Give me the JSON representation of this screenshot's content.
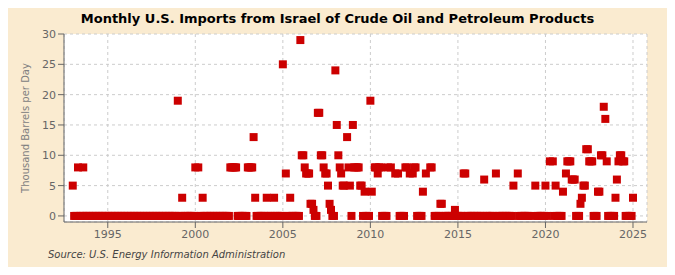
{
  "chart_data": {
    "type": "scatter",
    "title": "Monthly U.S. Imports from Israel of Crude Oil and Petroleum Products",
    "ylabel": "Thousand Barrels per Day",
    "annotation": "Source: U.S. Energy Information Administration",
    "color": "#cc0000",
    "marker": "square",
    "grid": true,
    "xlim": [
      1992.5,
      2025.8
    ],
    "xticks": [
      1995,
      2000,
      2005,
      2010,
      2015,
      2020,
      2025
    ],
    "ylim": [
      -1,
      30
    ],
    "yticks": [
      0,
      5,
      10,
      15,
      20,
      25,
      30
    ],
    "x": [
      1993.0,
      1993.3,
      1993.6,
      1993.08,
      1993.17,
      1993.25,
      1993.42,
      1993.5,
      1993.58,
      1993.67,
      1993.75,
      1993.83,
      1993.92,
      1994.0,
      1994.08,
      1994.17,
      1994.25,
      1994.33,
      1994.42,
      1994.5,
      1994.58,
      1994.67,
      1994.75,
      1994.83,
      1994.92,
      1995.0,
      1995.08,
      1995.17,
      1995.25,
      1995.33,
      1995.42,
      1995.5,
      1995.58,
      1995.67,
      1995.75,
      1995.83,
      1995.92,
      1996.0,
      1996.08,
      1996.17,
      1996.25,
      1996.33,
      1996.42,
      1996.5,
      1996.58,
      1996.67,
      1996.75,
      1996.83,
      1996.92,
      1997.0,
      1997.08,
      1997.17,
      1997.25,
      1997.33,
      1997.42,
      1997.5,
      1997.58,
      1997.67,
      1997.75,
      1997.83,
      1997.92,
      1998.0,
      1998.08,
      1998.17,
      1998.25,
      1998.33,
      1998.42,
      1998.5,
      1998.58,
      1998.67,
      1998.75,
      1998.83,
      1998.92,
      1999.0,
      1999.25,
      1999.08,
      1999.17,
      1999.33,
      1999.42,
      1999.5,
      1999.58,
      1999.67,
      1999.75,
      1999.83,
      1999.92,
      2000.0,
      2000.17,
      2000.42,
      2000.25,
      2000.33,
      2000.5,
      2000.58,
      2000.67,
      2000.75,
      2000.83,
      2000.92,
      2001.0,
      2001.08,
      2001.17,
      2001.25,
      2001.33,
      2001.42,
      2001.5,
      2001.58,
      2001.67,
      2001.75,
      2001.83,
      2001.92,
      2002.0,
      2002.08,
      2002.17,
      2002.25,
      2002.33,
      2002.42,
      2002.5,
      2002.58,
      2002.67,
      2002.75,
      2002.83,
      2002.92,
      2003.0,
      2003.08,
      2003.17,
      2003.25,
      2003.33,
      2003.42,
      2003.5,
      2003.58,
      2003.67,
      2003.75,
      2003.83,
      2003.92,
      2004.08,
      2004.5,
      2004.0,
      2004.17,
      2004.25,
      2004.33,
      2004.42,
      2004.58,
      2004.67,
      2004.75,
      2004.83,
      2004.92,
      2005.0,
      2005.17,
      2005.42,
      2005.25,
      2005.33,
      2005.5,
      2005.58,
      2005.67,
      2005.75,
      2005.83,
      2005.92,
      2006.0,
      2006.08,
      2006.17,
      2006.25,
      2006.33,
      2006.42,
      2006.5,
      2006.58,
      2006.67,
      2006.75,
      2006.83,
      2006.92,
      2007.0,
      2007.08,
      2007.17,
      2007.25,
      2007.33,
      2007.42,
      2007.5,
      2007.58,
      2007.67,
      2007.75,
      2007.83,
      2007.92,
      2008.0,
      2008.08,
      2008.17,
      2008.25,
      2008.33,
      2008.42,
      2008.5,
      2008.67,
      2008.75,
      2008.83,
      2008.92,
      2009.0,
      2009.08,
      2009.17,
      2009.25,
      2009.33,
      2009.42,
      2009.5,
      2009.58,
      2009.67,
      2009.75,
      2009.83,
      2009.92,
      2010.0,
      2010.08,
      2010.25,
      2010.33,
      2010.42,
      2010.5,
      2010.58,
      2010.67,
      2010.75,
      2010.83,
      2010.92,
      2011.0,
      2011.17,
      2011.42,
      2011.58,
      2011.67,
      2011.75,
      2011.83,
      2011.92,
      2012.0,
      2012.08,
      2012.25,
      2012.42,
      2012.5,
      2012.58,
      2012.67,
      2012.75,
      2012.83,
      2012.92,
      2013.0,
      2013.17,
      2013.42,
      2013.5,
      2013.67,
      2013.75,
      2013.83,
      2013.92,
      2014.0,
      2014.08,
      2014.17,
      2014.25,
      2014.33,
      2014.42,
      2014.5,
      2014.58,
      2014.67,
      2014.75,
      2014.83,
      2014.92,
      2015.0,
      2015.08,
      2015.17,
      2015.25,
      2015.33,
      2015.42,
      2015.5,
      2015.58,
      2015.67,
      2015.75,
      2015.83,
      2015.92,
      2016.0,
      2016.08,
      2016.17,
      2016.25,
      2016.33,
      2016.42,
      2016.5,
      2016.58,
      2016.67,
      2016.75,
      2016.83,
      2016.92,
      2017.0,
      2017.17,
      2017.25,
      2017.33,
      2017.42,
      2017.5,
      2017.58,
      2017.67,
      2017.75,
      2017.83,
      2017.92,
      2018.0,
      2018.08,
      2018.17,
      2018.42,
      2018.5,
      2018.58,
      2018.67,
      2018.75,
      2018.83,
      2018.92,
      2019.0,
      2019.08,
      2019.42,
      2019.5,
      2019.58,
      2019.67,
      2019.75,
      2019.83,
      2019.92,
      2020.0,
      2020.08,
      2020.25,
      2020.42,
      2020.5,
      2020.58,
      2020.67,
      2020.75,
      2020.83,
      2020.92,
      2021.0,
      2021.17,
      2021.25,
      2021.33,
      2021.42,
      2021.5,
      2021.58,
      2021.67,
      2021.75,
      2021.83,
      2021.92,
      2022.0,
      2022.08,
      2022.17,
      2022.25,
      2022.33,
      2022.42,
      2022.5,
      2022.58,
      2022.67,
      2022.75,
      2022.83,
      2022.92,
      2023.0,
      2023.08,
      2023.17,
      2023.25,
      2023.33,
      2023.42,
      2023.5,
      2023.58,
      2023.67,
      2023.75,
      2023.83,
      2023.92,
      2024.0,
      2024.08,
      2024.17,
      2024.25,
      2024.33,
      2024.42,
      2024.5,
      2024.58,
      2024.67,
      2024.75,
      2024.83,
      2024.92,
      2025.0
    ],
    "values": [
      5,
      8,
      8,
      0,
      0,
      0,
      0,
      0,
      0,
      0,
      0,
      0,
      0,
      0,
      0,
      0,
      0,
      0,
      0,
      0,
      0,
      0,
      0,
      0,
      0,
      0,
      0,
      0,
      0,
      0,
      0,
      0,
      0,
      0,
      0,
      0,
      0,
      0,
      0,
      0,
      0,
      0,
      0,
      0,
      0,
      0,
      0,
      0,
      0,
      0,
      0,
      0,
      0,
      0,
      0,
      0,
      0,
      0,
      0,
      0,
      0,
      0,
      0,
      0,
      0,
      0,
      0,
      0,
      0,
      0,
      0,
      0,
      0,
      19,
      3,
      0,
      0,
      0,
      0,
      0,
      0,
      0,
      0,
      0,
      0,
      8,
      8,
      3,
      0,
      0,
      0,
      0,
      0,
      0,
      0,
      0,
      0,
      0,
      0,
      0,
      0,
      0,
      0,
      0,
      0,
      0,
      0,
      0,
      8,
      8,
      8,
      8,
      8,
      0,
      0,
      0,
      0,
      0,
      0,
      0,
      8,
      8,
      8,
      8,
      13,
      3,
      0,
      0,
      0,
      0,
      0,
      0,
      3,
      3,
      0,
      0,
      0,
      0,
      0,
      0,
      0,
      0,
      0,
      0,
      25,
      7,
      3,
      0,
      0,
      0,
      0,
      0,
      0,
      0,
      0,
      29,
      10,
      10,
      8,
      7,
      7,
      7,
      2,
      2,
      1,
      0,
      0,
      17,
      17,
      10,
      10,
      8,
      7,
      7,
      5,
      2,
      1,
      0,
      0,
      24,
      15,
      10,
      8,
      7,
      5,
      5,
      13,
      8,
      5,
      0,
      15,
      8,
      8,
      8,
      8,
      5,
      5,
      0,
      4,
      0,
      0,
      0,
      19,
      4,
      8,
      8,
      7,
      8,
      8,
      0,
      0,
      0,
      0,
      8,
      8,
      7,
      7,
      0,
      0,
      0,
      0,
      8,
      8,
      7,
      7,
      8,
      8,
      0,
      0,
      0,
      0,
      4,
      7,
      8,
      8,
      0,
      0,
      0,
      0,
      2,
      2,
      0,
      0,
      0,
      0,
      0,
      0,
      0,
      0,
      1,
      0,
      0,
      0,
      0,
      0,
      7,
      7,
      0,
      0,
      0,
      0,
      0,
      0,
      0,
      0,
      0,
      0,
      0,
      0,
      6,
      0,
      0,
      0,
      0,
      0,
      0,
      7,
      0,
      0,
      0,
      0,
      0,
      0,
      0,
      0,
      0,
      0,
      0,
      5,
      7,
      0,
      0,
      0,
      0,
      0,
      0,
      0,
      0,
      5,
      0,
      0,
      0,
      0,
      0,
      0,
      5,
      0,
      9,
      9,
      0,
      5,
      0,
      0,
      0,
      0,
      4,
      7,
      9,
      9,
      9,
      6,
      6,
      6,
      0,
      0,
      0,
      2,
      3,
      5,
      5,
      11,
      11,
      9,
      9,
      9,
      0,
      0,
      0,
      4,
      4,
      10,
      10,
      18,
      16,
      9,
      0,
      0,
      0,
      0,
      0,
      3,
      6,
      9,
      10,
      10,
      9,
      9,
      0,
      0,
      0,
      0,
      0,
      3
    ]
  }
}
